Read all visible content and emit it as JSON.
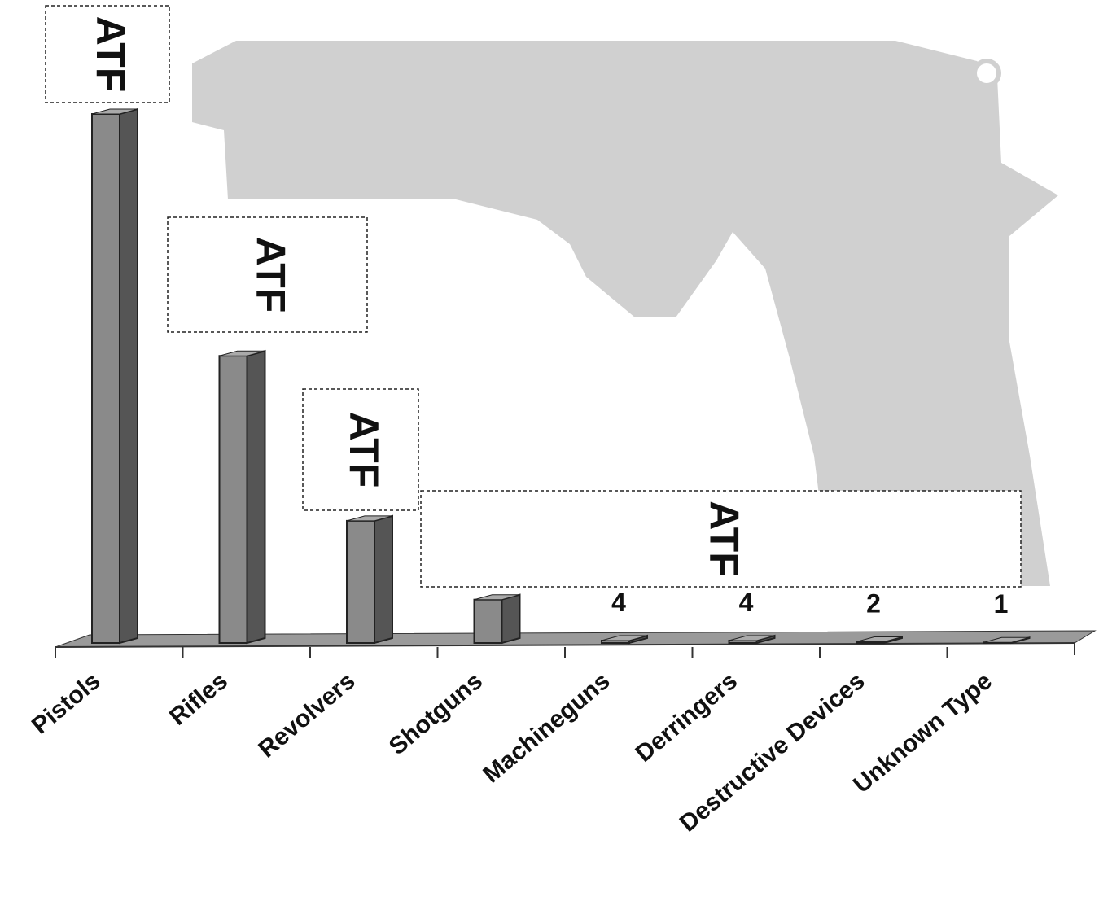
{
  "chart_data": {
    "type": "bar3d",
    "categories": [
      "Pistols",
      "Rifles",
      "Revolvers",
      "Shotguns",
      "Machineguns",
      "Derringers",
      "Destructive Devices",
      "Unknown Type"
    ],
    "values": [
      866,
      470,
      200,
      71,
      4,
      4,
      2,
      1
    ],
    "color": "#8a8a8a",
    "annotations": [
      "ATF",
      "ATF",
      "ATF",
      "ATF"
    ]
  }
}
